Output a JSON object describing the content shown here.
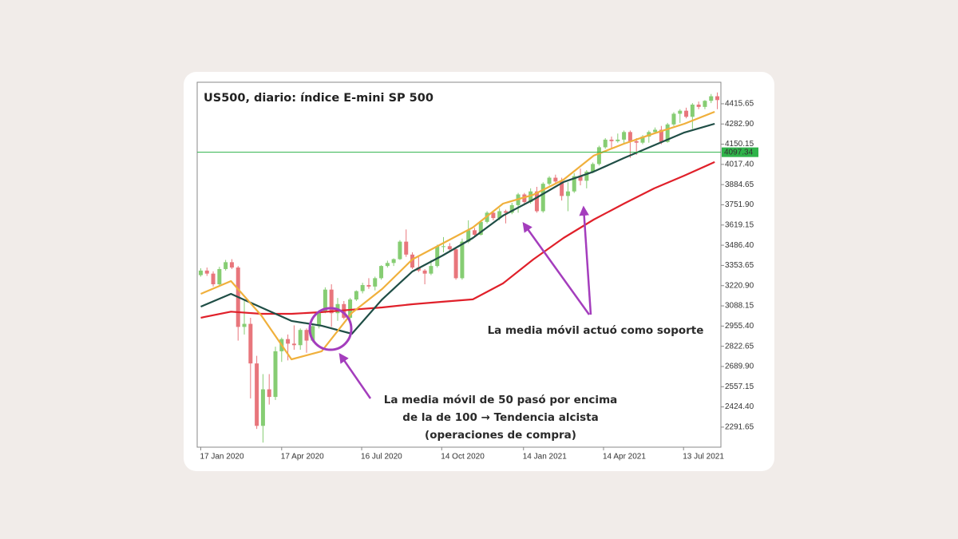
{
  "chart_data": {
    "type": "candlestick",
    "title": "US500, diario: índice E-mini SP 500",
    "xlim": [
      "2020-01-13",
      "2021-08-24"
    ],
    "xticks": [
      {
        "value": "2020-01-17",
        "label": "17 Jan 2020"
      },
      {
        "value": "2020-04-17",
        "label": "17 Apr 2020"
      },
      {
        "value": "2020-07-16",
        "label": "16 Jul 2020"
      },
      {
        "value": "2020-10-14",
        "label": "14 Oct 2020"
      },
      {
        "value": "2021-01-14",
        "label": "14 Jan 2021"
      },
      {
        "value": "2021-04-14",
        "label": "14 Apr 2021"
      },
      {
        "value": "2021-07-13",
        "label": "13 Jul 2021"
      }
    ],
    "ylim": [
      2160,
      4557
    ],
    "yticks": [
      2291.65,
      {
        "value": 2424.4,
        "label": "2424.40"
      },
      2557.15,
      {
        "value": 2689.9,
        "label": "2689.90"
      },
      2822.65,
      {
        "value": 2955.4,
        "label": "2955.40"
      },
      3088.15,
      {
        "value": 3220.9,
        "label": "3220.90"
      },
      3353.65,
      {
        "value": 3486.4,
        "label": "3486.40"
      },
      3619.15,
      {
        "value": 3751.9,
        "label": "3751.90"
      },
      3884.65,
      {
        "value": 4017.4,
        "label": "4017.40"
      },
      4150.15,
      {
        "value": 4282.9,
        "label": "4282.90"
      },
      4415.65
    ],
    "up_color": "#86cd73",
    "down_color": "#e8767c",
    "candles": {
      "x": [
        "2020-01-17",
        "2020-01-24",
        "2020-01-31",
        "2020-02-07",
        "2020-02-14",
        "2020-02-21",
        "2020-02-28",
        "2020-03-06",
        "2020-03-13",
        "2020-03-20",
        "2020-03-27",
        "2020-04-03",
        "2020-04-10",
        "2020-04-17",
        "2020-04-24",
        "2020-05-01",
        "2020-05-08",
        "2020-05-15",
        "2020-05-22",
        "2020-05-29",
        "2020-06-05",
        "2020-06-12",
        "2020-06-19",
        "2020-06-26",
        "2020-07-03",
        "2020-07-10",
        "2020-07-17",
        "2020-07-24",
        "2020-07-31",
        "2020-08-07",
        "2020-08-14",
        "2020-08-21",
        "2020-08-28",
        "2020-09-04",
        "2020-09-11",
        "2020-09-18",
        "2020-09-25",
        "2020-10-02",
        "2020-10-09",
        "2020-10-16",
        "2020-10-23",
        "2020-10-30",
        "2020-11-06",
        "2020-11-13",
        "2020-11-20",
        "2020-11-27",
        "2020-12-04",
        "2020-12-11",
        "2020-12-18",
        "2020-12-25",
        "2021-01-01",
        "2021-01-08",
        "2021-01-15",
        "2021-01-22",
        "2021-01-29",
        "2021-02-05",
        "2021-02-12",
        "2021-02-19",
        "2021-02-26",
        "2021-03-05",
        "2021-03-12",
        "2021-03-19",
        "2021-03-26",
        "2021-04-02",
        "2021-04-09",
        "2021-04-16",
        "2021-04-23",
        "2021-04-30",
        "2021-05-07",
        "2021-05-14",
        "2021-05-21",
        "2021-05-28",
        "2021-06-04",
        "2021-06-11",
        "2021-06-18",
        "2021-06-25",
        "2021-07-02",
        "2021-07-09",
        "2021-07-16",
        "2021-07-23",
        "2021-07-30",
        "2021-08-06",
        "2021-08-13",
        "2021-08-20"
      ],
      "open": [
        3290,
        3320,
        3300,
        3230,
        3330,
        3375,
        3340,
        2950,
        2970,
        2710,
        2300,
        2540,
        2490,
        2790,
        2870,
        2840,
        2830,
        2930,
        2860,
        2955,
        3045,
        3195,
        3040,
        3100,
        3010,
        3130,
        3185,
        3225,
        3215,
        3270,
        3350,
        3370,
        3395,
        3510,
        3425,
        3340,
        3320,
        3300,
        3350,
        3480,
        3480,
        3460,
        3270,
        3510,
        3585,
        3555,
        3640,
        3700,
        3665,
        3710,
        3700,
        3750,
        3820,
        3770,
        3840,
        3710,
        3890,
        3930,
        3905,
        3810,
        3840,
        3940,
        3910,
        3970,
        4020,
        4130,
        4180,
        4170,
        4180,
        4230,
        4170,
        4160,
        4200,
        4230,
        4245,
        4165,
        4280,
        4350,
        4370,
        4330,
        4410,
        4395,
        4435,
        4465
      ],
      "high": [
        3335,
        3340,
        3315,
        3345,
        3390,
        3395,
        3350,
        3130,
        3010,
        2760,
        2640,
        2640,
        2820,
        2880,
        2900,
        2960,
        2940,
        2940,
        2965,
        3060,
        3210,
        3230,
        3140,
        3120,
        3140,
        3190,
        3240,
        3270,
        3280,
        3355,
        3385,
        3400,
        3520,
        3590,
        3440,
        3410,
        3330,
        3390,
        3490,
        3540,
        3500,
        3470,
        3530,
        3650,
        3600,
        3650,
        3710,
        3710,
        3730,
        3720,
        3765,
        3830,
        3830,
        3860,
        3870,
        3900,
        3940,
        3950,
        3930,
        3900,
        3960,
        3990,
        3980,
        4030,
        4140,
        4190,
        4200,
        4220,
        4240,
        4240,
        4190,
        4210,
        4240,
        4260,
        4270,
        4290,
        4360,
        4380,
        4390,
        4420,
        4430,
        4440,
        4480,
        4490
      ],
      "low": [
        3280,
        3285,
        3215,
        3220,
        3320,
        3330,
        2860,
        2900,
        2480,
        2280,
        2190,
        2440,
        2470,
        2720,
        2730,
        2800,
        2800,
        2780,
        2850,
        2940,
        3040,
        2950,
        2990,
        3000,
        3000,
        3120,
        3170,
        3200,
        3190,
        3260,
        3340,
        3350,
        3390,
        3410,
        3330,
        3310,
        3230,
        3290,
        3340,
        3440,
        3440,
        3260,
        3260,
        3500,
        3540,
        3550,
        3630,
        3650,
        3650,
        3630,
        3690,
        3700,
        3760,
        3760,
        3700,
        3700,
        3880,
        3890,
        3780,
        3710,
        3830,
        3880,
        3860,
        3960,
        4010,
        4120,
        4120,
        4160,
        4150,
        4060,
        4080,
        4150,
        4160,
        4220,
        4150,
        4160,
        4270,
        4290,
        4320,
        4250,
        4380,
        4380,
        4420,
        4380
      ],
      "close": [
        3320,
        3300,
        3230,
        3330,
        3375,
        3340,
        2950,
        2970,
        2710,
        2300,
        2540,
        2490,
        2790,
        2870,
        2840,
        2830,
        2930,
        2860,
        2955,
        3045,
        3195,
        3040,
        3100,
        3010,
        3130,
        3185,
        3225,
        3215,
        3270,
        3350,
        3370,
        3395,
        3510,
        3425,
        3340,
        3320,
        3300,
        3350,
        3480,
        3480,
        3460,
        3270,
        3510,
        3585,
        3555,
        3640,
        3700,
        3665,
        3710,
        3700,
        3750,
        3820,
        3770,
        3840,
        3710,
        3890,
        3930,
        3905,
        3810,
        3840,
        3940,
        3910,
        3970,
        4020,
        4130,
        4180,
        4170,
        4180,
        4230,
        4170,
        4160,
        4200,
        4230,
        4245,
        4165,
        4280,
        4350,
        4370,
        4330,
        4410,
        4395,
        4435,
        4465,
        4440
      ]
    },
    "lines": {
      "x": [
        "2020-01-17",
        "2020-02-20",
        "2020-03-25",
        "2020-04-28",
        "2020-06-01",
        "2020-07-05",
        "2020-08-08",
        "2020-09-11",
        "2020-10-15",
        "2020-11-18",
        "2020-12-22",
        "2021-01-25",
        "2021-02-28",
        "2021-04-03",
        "2021-05-07",
        "2021-06-10",
        "2021-07-14",
        "2021-08-17"
      ],
      "series": [
        {
          "color": "#e0202a",
          "values": [
            3010,
            3050,
            3036,
            3036,
            3047,
            3063,
            3078,
            3099,
            3115,
            3131,
            3236,
            3393,
            3534,
            3655,
            3760,
            3860,
            3944,
            4033
          ]
        },
        {
          "color": "#1f4e46",
          "values": [
            3083,
            3167,
            3078,
            2989,
            2958,
            2905,
            3131,
            3314,
            3419,
            3534,
            3681,
            3786,
            3902,
            3970,
            4059,
            4143,
            4227,
            4284
          ]
        },
        {
          "color": "#f0b03c",
          "values": [
            3167,
            3251,
            3026,
            2737,
            2790,
            3042,
            3199,
            3393,
            3498,
            3603,
            3760,
            3818,
            3917,
            4075,
            4153,
            4221,
            4284,
            4363
          ]
        }
      ]
    },
    "price_line": {
      "value": 4097.34,
      "color": "#2fb34a"
    },
    "annotations": [
      {
        "lines": [
          "La media móvil de 50 pasó por encima",
          "de la de 100 → Tendencia alcista",
          "(operaciones de compra)"
        ]
      },
      {
        "lines": [
          "La media móvil actuó como soporte"
        ]
      }
    ]
  }
}
